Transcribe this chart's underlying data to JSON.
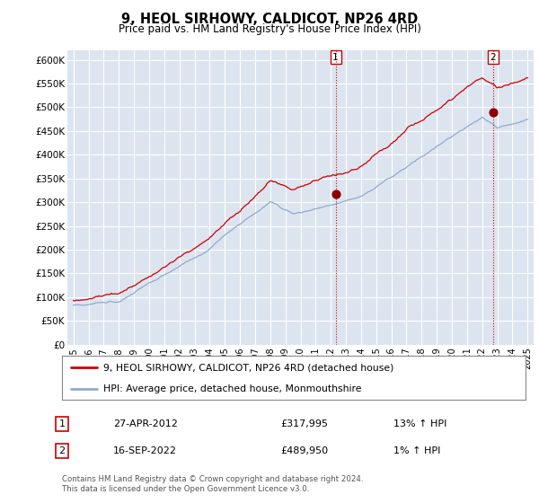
{
  "title": "9, HEOL SIRHOWY, CALDICOT, NP26 4RD",
  "subtitle": "Price paid vs. HM Land Registry's House Price Index (HPI)",
  "ylabel_ticks": [
    "£0",
    "£50K",
    "£100K",
    "£150K",
    "£200K",
    "£250K",
    "£300K",
    "£350K",
    "£400K",
    "£450K",
    "£500K",
    "£550K",
    "£600K"
  ],
  "ytick_values": [
    0,
    50000,
    100000,
    150000,
    200000,
    250000,
    300000,
    350000,
    400000,
    450000,
    500000,
    550000,
    600000
  ],
  "ylim": [
    0,
    620000
  ],
  "xtick_years": [
    1995,
    1996,
    1997,
    1998,
    1999,
    2000,
    2001,
    2002,
    2003,
    2004,
    2005,
    2006,
    2007,
    2008,
    2009,
    2010,
    2011,
    2012,
    2013,
    2014,
    2015,
    2016,
    2017,
    2018,
    2019,
    2020,
    2021,
    2022,
    2023,
    2024,
    2025
  ],
  "legend_label_red": "9, HEOL SIRHOWY, CALDICOT, NP26 4RD (detached house)",
  "legend_label_blue": "HPI: Average price, detached house, Monmouthshire",
  "marker1_x": 2012.32,
  "marker1_y": 317995,
  "marker2_x": 2022.71,
  "marker2_y": 489950,
  "annotation1_date": "27-APR-2012",
  "annotation1_price": "£317,995",
  "annotation1_hpi": "13% ↑ HPI",
  "annotation2_date": "16-SEP-2022",
  "annotation2_price": "£489,950",
  "annotation2_hpi": "1% ↑ HPI",
  "footnote": "Contains HM Land Registry data © Crown copyright and database right 2024.\nThis data is licensed under the Open Government Licence v3.0.",
  "background_color": "#ffffff",
  "plot_bg_color": "#dce4f0",
  "grid_color": "#ffffff",
  "red_color": "#cc0000",
  "blue_color": "#91aacf"
}
